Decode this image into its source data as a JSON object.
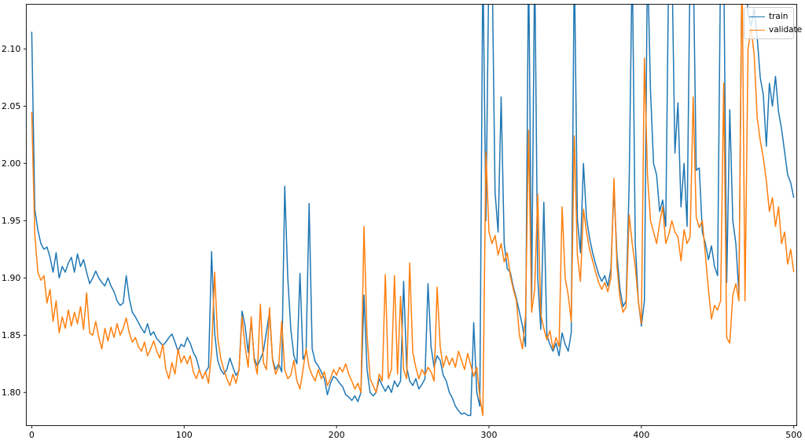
{
  "figure": {
    "background": "#ffffff",
    "spine_color": "#000000"
  },
  "legend": {
    "position": "upper right",
    "items": [
      {
        "label": "train",
        "color": "#1f77b4"
      },
      {
        "label": "validate",
        "color": "#ff7f0e"
      }
    ]
  },
  "chart_data": {
    "type": "line",
    "title": "",
    "xlabel": "",
    "ylabel": "",
    "grid": false,
    "legend_position": "upper right",
    "xlim": [
      -3.6,
      502
    ],
    "ylim": [
      1.771,
      2.139
    ],
    "x_ticks": [
      0,
      100,
      200,
      300,
      400,
      500
    ],
    "y_ticks": [
      "1.80",
      "1.85",
      "1.90",
      "1.95",
      "2.00",
      "2.05",
      "2.10"
    ],
    "clip_note": "y values of 2.18 are spikes that extend above the visible axes (clipped at top)",
    "series": [
      {
        "name": "train",
        "color": "#1f77b4",
        "x_start": 0,
        "x_step": 2,
        "y": [
          2.115,
          1.96,
          1.942,
          1.93,
          1.925,
          1.927,
          1.918,
          1.905,
          1.922,
          1.9,
          1.91,
          1.905,
          1.913,
          1.918,
          1.905,
          1.921,
          1.91,
          1.916,
          1.905,
          1.895,
          1.9,
          1.906,
          1.9,
          1.896,
          1.893,
          1.9,
          1.893,
          1.888,
          1.88,
          1.876,
          1.878,
          1.902,
          1.882,
          1.87,
          1.866,
          1.861,
          1.856,
          1.852,
          1.86,
          1.85,
          1.853,
          1.847,
          1.844,
          1.841,
          1.844,
          1.848,
          1.851,
          1.844,
          1.836,
          1.842,
          1.84,
          1.848,
          1.843,
          1.835,
          1.83,
          1.82,
          1.812,
          1.818,
          1.822,
          1.923,
          1.852,
          1.828,
          1.82,
          1.816,
          1.82,
          1.83,
          1.822,
          1.815,
          1.819,
          1.871,
          1.858,
          1.835,
          1.862,
          1.83,
          1.823,
          1.829,
          1.836,
          1.853,
          1.87,
          1.829,
          1.82,
          1.825,
          1.818,
          1.98,
          1.9,
          1.855,
          1.832,
          1.825,
          1.904,
          1.829,
          1.835,
          1.965,
          1.838,
          1.827,
          1.823,
          1.818,
          1.812,
          1.798,
          1.808,
          1.814,
          1.812,
          1.808,
          1.805,
          1.798,
          1.796,
          1.793,
          1.797,
          1.792,
          1.8,
          1.885,
          1.82,
          1.8,
          1.797,
          1.8,
          1.812,
          1.806,
          1.801,
          1.806,
          1.8,
          1.81,
          1.805,
          1.81,
          1.897,
          1.822,
          1.81,
          1.806,
          1.812,
          1.803,
          1.807,
          1.812,
          1.895,
          1.84,
          1.822,
          1.832,
          1.828,
          1.815,
          1.81,
          1.8,
          1.795,
          1.788,
          1.784,
          1.781,
          1.782,
          1.78,
          1.78,
          1.861,
          1.8,
          1.788,
          2.18,
          1.95,
          2.18,
          2.18,
          1.975,
          1.94,
          2.058,
          1.93,
          1.908,
          1.905,
          1.892,
          1.882,
          1.87,
          1.858,
          1.84,
          2.18,
          1.88,
          2.18,
          1.9,
          1.855,
          1.966,
          1.85,
          1.842,
          1.836,
          1.843,
          1.832,
          1.852,
          1.842,
          1.836,
          1.852,
          2.18,
          1.952,
          1.922,
          2.0,
          1.952,
          1.935,
          1.922,
          1.912,
          1.903,
          1.897,
          1.902,
          1.893,
          1.908,
          1.978,
          1.92,
          1.89,
          1.875,
          1.88,
          1.983,
          2.18,
          1.93,
          1.88,
          1.858,
          1.88,
          2.18,
          2.063,
          2.0,
          1.99,
          1.958,
          1.968,
          1.945,
          2.18,
          2.18,
          2.009,
          2.053,
          1.962,
          2.0,
          1.945,
          2.18,
          2.18,
          1.994,
          1.996,
          1.94,
          1.93,
          1.916,
          1.928,
          1.91,
          1.902,
          2.18,
          2.18,
          1.896,
          2.047,
          1.95,
          1.93,
          1.886,
          2.18,
          2.18,
          2.13,
          2.12,
          2.135,
          2.11,
          2.075,
          2.06,
          2.015,
          2.07,
          2.05,
          2.076,
          2.045,
          2.03,
          2.01,
          1.99,
          1.983,
          1.97
        ]
      },
      {
        "name": "validate",
        "color": "#ff7f0e",
        "x_start": 0,
        "x_step": 2,
        "y": [
          2.045,
          1.938,
          1.905,
          1.898,
          1.902,
          1.878,
          1.89,
          1.862,
          1.88,
          1.852,
          1.866,
          1.856,
          1.872,
          1.858,
          1.87,
          1.86,
          1.875,
          1.855,
          1.887,
          1.852,
          1.85,
          1.862,
          1.848,
          1.838,
          1.856,
          1.845,
          1.857,
          1.848,
          1.86,
          1.85,
          1.856,
          1.865,
          1.852,
          1.844,
          1.848,
          1.84,
          1.836,
          1.844,
          1.832,
          1.838,
          1.845,
          1.836,
          1.83,
          1.842,
          1.82,
          1.812,
          1.826,
          1.816,
          1.838,
          1.826,
          1.832,
          1.825,
          1.832,
          1.818,
          1.812,
          1.82,
          1.812,
          1.818,
          1.808,
          1.835,
          1.905,
          1.848,
          1.83,
          1.82,
          1.812,
          1.806,
          1.816,
          1.808,
          1.82,
          1.866,
          1.84,
          1.822,
          1.866,
          1.828,
          1.816,
          1.877,
          1.826,
          1.82,
          1.874,
          1.828,
          1.816,
          1.822,
          1.862,
          1.82,
          1.812,
          1.815,
          1.828,
          1.81,
          1.803,
          1.82,
          1.838,
          1.822,
          1.815,
          1.81,
          1.82,
          1.812,
          1.818,
          1.806,
          1.812,
          1.82,
          1.815,
          1.822,
          1.818,
          1.825,
          1.816,
          1.81,
          1.803,
          1.808,
          1.8,
          1.945,
          1.85,
          1.812,
          1.806,
          1.8,
          1.816,
          1.81,
          1.903,
          1.812,
          1.82,
          1.902,
          1.816,
          1.884,
          1.82,
          1.812,
          1.913,
          1.835,
          1.822,
          1.812,
          1.82,
          1.815,
          1.822,
          1.818,
          1.81,
          1.892,
          1.84,
          1.822,
          1.832,
          1.824,
          1.83,
          1.822,
          1.836,
          1.828,
          1.82,
          1.834,
          1.824,
          1.814,
          1.822,
          1.796,
          1.78,
          2.01,
          1.94,
          1.93,
          1.937,
          1.92,
          1.93,
          1.914,
          1.922,
          1.902,
          1.89,
          1.88,
          1.85,
          1.838,
          1.867,
          2.029,
          1.87,
          1.89,
          1.973,
          1.868,
          1.856,
          1.846,
          1.854,
          1.838,
          1.848,
          1.84,
          1.962,
          1.9,
          1.885,
          1.862,
          2.024,
          1.92,
          1.897,
          1.96,
          1.94,
          1.925,
          1.915,
          1.905,
          1.896,
          1.89,
          1.896,
          1.888,
          1.9,
          1.987,
          1.91,
          1.882,
          1.87,
          1.875,
          1.955,
          1.93,
          1.91,
          1.88,
          1.86,
          2.092,
          1.99,
          1.95,
          1.94,
          1.93,
          1.948,
          1.962,
          1.93,
          1.938,
          1.95,
          1.94,
          1.936,
          1.915,
          1.942,
          1.93,
          1.936,
          2.058,
          1.953,
          1.944,
          1.95,
          1.92,
          1.89,
          1.864,
          1.876,
          1.872,
          1.88,
          2.07,
          1.848,
          1.843,
          1.885,
          1.895,
          1.88,
          2.18,
          1.88,
          2.1,
          2.118,
          2.095,
          2.04,
          2.02,
          2.005,
          1.985,
          1.958,
          1.97,
          1.945,
          1.962,
          1.93,
          1.94,
          1.912,
          1.925,
          1.905
        ]
      }
    ]
  }
}
